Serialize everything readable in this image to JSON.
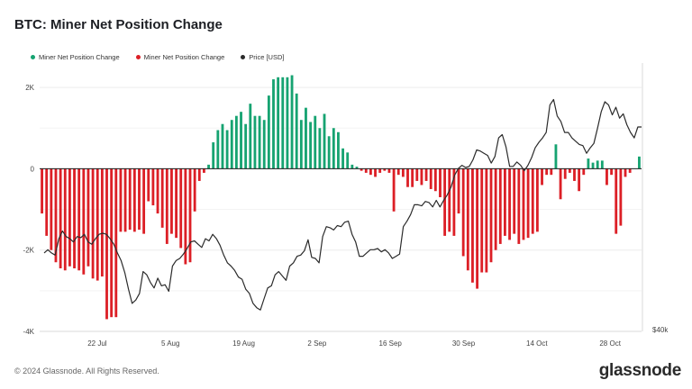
{
  "title": "BTC: Miner Net Position Change",
  "footer": {
    "copyright": "© 2024 Glassnode. All Rights Reserved.",
    "brand": "glassnode"
  },
  "legend": {
    "positive": "Miner Net Position Change",
    "negative": "Miner Net Position Change",
    "price": "Price [USD]"
  },
  "colors": {
    "positive": "#16a371",
    "negative": "#dc1f26",
    "price": "#2b2b2b",
    "grid": "#ececec"
  },
  "chart_data": {
    "type": "bar",
    "ylim": [
      -4000,
      2600
    ],
    "y_ticks": [
      2000,
      0,
      -2000,
      -4000
    ],
    "y_tick_labels": [
      "2K",
      "0",
      "-2K",
      "-4K"
    ],
    "right_axis_label": "$40k",
    "x_tick_labels": [
      "22 Jul",
      "5 Aug",
      "19 Aug",
      "2 Sep",
      "16 Sep",
      "30 Sep",
      "14 Oct",
      "28 Oct"
    ],
    "x_tick_days": [
      22,
      36,
      50,
      64,
      78,
      92,
      106,
      120
    ],
    "day_range": [
      11,
      126
    ],
    "series": [
      {
        "values": [
          -1100,
          -1650,
          -2000,
          -2300,
          -2450,
          -2500,
          -2400,
          -2450,
          -2500,
          -2600,
          -2400,
          -2700,
          -2750,
          -2650,
          -3700,
          -3650,
          -3650,
          -1550,
          -1550,
          -1500,
          -1550,
          -1500,
          -1600,
          -800,
          -900,
          -1100,
          -1450,
          -1850,
          -1600,
          -1700,
          -1950,
          -2350,
          -2300,
          -1050,
          -300,
          -100,
          100,
          650,
          950,
          1100,
          950,
          1200,
          1300,
          1400,
          1100,
          1600,
          1300,
          1300,
          1200,
          1800,
          2200,
          2250,
          2250,
          2250,
          2300,
          1850,
          1200,
          1500,
          1150,
          1300,
          1000,
          1350,
          800,
          1000,
          900,
          500,
          400,
          100,
          50,
          -50,
          -100,
          -150,
          -200,
          -100,
          -50,
          -100,
          -1050,
          -150,
          -200,
          -450,
          -450,
          -300,
          -400,
          -300,
          -500,
          -550,
          -700,
          -1650,
          -1550,
          -1650,
          -1100,
          -2150,
          -2500,
          -2800,
          -2950,
          -2550,
          -2550,
          -2300,
          -2000,
          -1850,
          -1650,
          -1750,
          -1600,
          -1850,
          -1750,
          -1700,
          -1600,
          -1550,
          -400,
          -150,
          -150,
          600,
          -750,
          -250,
          -100,
          -300,
          -550,
          -150,
          250,
          150,
          200,
          200,
          -400,
          -150,
          -1600,
          -1400,
          -200,
          -100,
          0,
          300
        ]
      },
      {
        "name": "Price [USD]",
        "values": [
          58500,
          58800,
          58500,
          58300,
          59800,
          60500,
          60000,
          59800,
          59500,
          60000,
          59900,
          60200,
          59500,
          59300,
          59800,
          60200,
          60300,
          60200,
          59800,
          59300,
          58500,
          57800,
          56700,
          55200,
          53900,
          54200,
          54800,
          56800,
          56500,
          55800,
          55300,
          56200,
          55500,
          55600,
          55000,
          57300,
          57800,
          58000,
          58400,
          58900,
          59500,
          59600,
          59300,
          59000,
          59800,
          59600,
          60200,
          59800,
          59200,
          58300,
          57600,
          57300,
          56900,
          56300,
          56100,
          55200,
          54800,
          53900,
          53500,
          53300,
          54300,
          55300,
          55500,
          56500,
          56800,
          56400,
          56000,
          57300,
          57600,
          58200,
          58300,
          58700,
          59700,
          58100,
          58000,
          57600,
          60000,
          60900,
          60800,
          60600,
          61000,
          60900,
          61300,
          61400,
          60200,
          59500,
          58200,
          58200,
          58500,
          58800,
          58800,
          58900,
          58600,
          58800,
          58500,
          58000,
          58200,
          58400,
          60900,
          61400,
          62000,
          62900,
          62900,
          62800,
          63200,
          63100,
          62700,
          63300,
          62700,
          63300,
          63800,
          64500,
          65600,
          66200,
          66500,
          66300,
          66400,
          67000,
          67900,
          67800,
          67600,
          67400,
          66700,
          67300,
          69000,
          69300,
          68200,
          66400,
          66400,
          66800,
          66500,
          66000,
          66500,
          67200,
          68100,
          68600,
          69000,
          69500,
          72000,
          72500,
          71000,
          70500,
          69500,
          69500,
          69000,
          68700,
          68400,
          68300,
          67600,
          68100,
          68500,
          69900,
          71400,
          72300,
          72000,
          71100,
          71800,
          70800,
          71200,
          70200,
          69500,
          69000,
          70000,
          70000
        ]
      }
    ],
    "series_start_day": 11
  }
}
